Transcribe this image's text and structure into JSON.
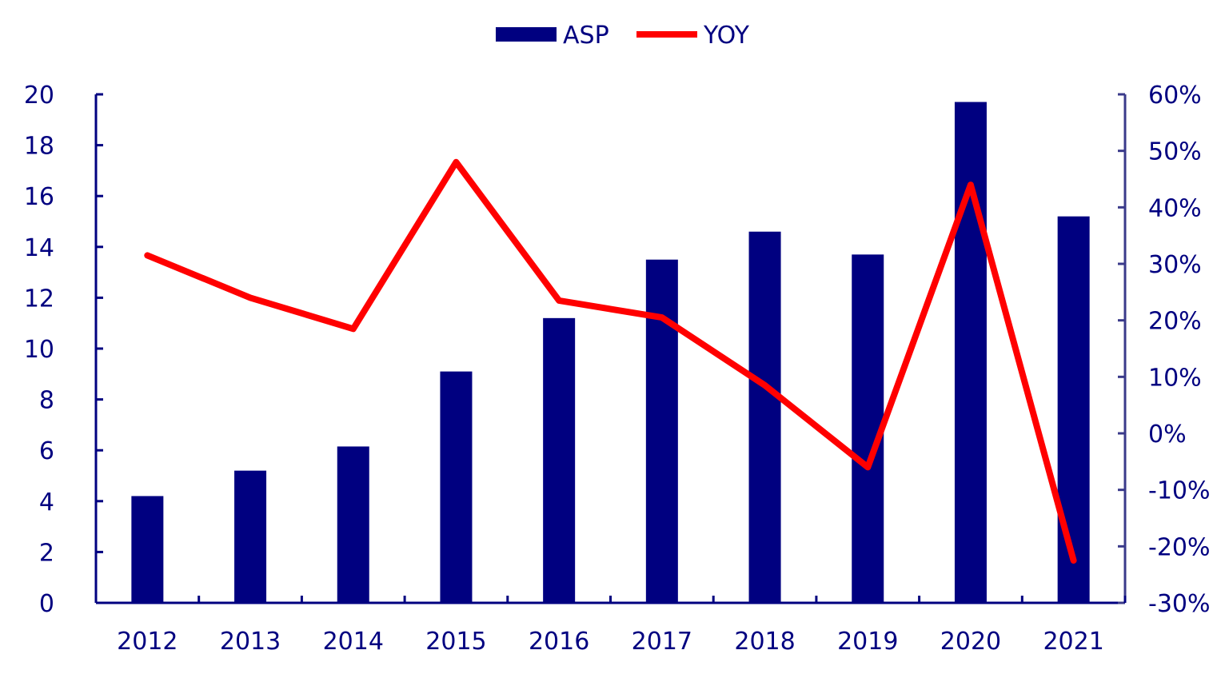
{
  "chart_data": {
    "type": "bar",
    "title": "",
    "categories": [
      "2012",
      "2013",
      "2014",
      "2015",
      "2016",
      "2017",
      "2018",
      "2019",
      "2020",
      "2021"
    ],
    "series": [
      {
        "name": "ASP",
        "type": "bar",
        "axis": "left",
        "color": "#000080",
        "values": [
          4.2,
          5.2,
          6.15,
          9.1,
          11.2,
          13.5,
          14.6,
          13.7,
          19.7,
          15.2
        ]
      },
      {
        "name": "YOY",
        "type": "line",
        "axis": "right",
        "color": "#ff0000",
        "values": [
          31.5,
          24,
          18.5,
          48,
          23.5,
          20.5,
          8.5,
          -6,
          44,
          -22.5
        ]
      }
    ],
    "y_left": {
      "min": 0,
      "max": 20,
      "step": 2,
      "ticks": [
        "0",
        "2",
        "4",
        "6",
        "8",
        "10",
        "12",
        "14",
        "16",
        "18",
        "20"
      ]
    },
    "y_right": {
      "min": -30,
      "max": 60,
      "step": 10,
      "ticks": [
        "-30%",
        "-20%",
        "-10%",
        "0%",
        "10%",
        "20%",
        "30%",
        "40%",
        "50%",
        "60%"
      ]
    },
    "legend": {
      "position": "top-center",
      "entries": [
        "ASP",
        "YOY"
      ]
    },
    "xlabel": "",
    "ylabel": "",
    "grid": false
  }
}
